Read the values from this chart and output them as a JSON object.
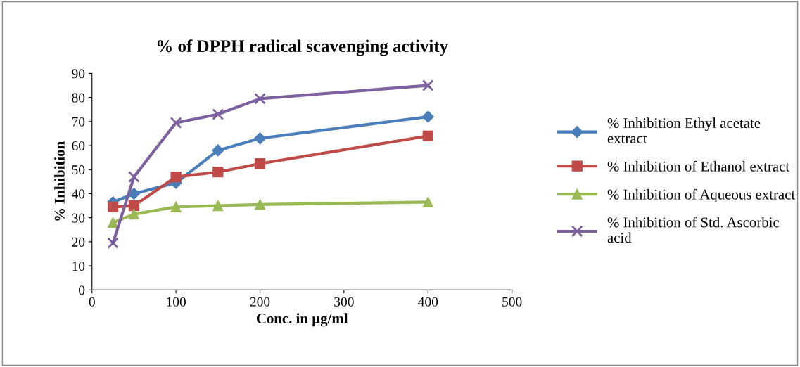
{
  "chart_data": {
    "type": "line",
    "title": "% of DPPH radical scavenging activity",
    "xlabel": "Conc. in µg/ml",
    "ylabel": "% Inhibition",
    "x": [
      25,
      50,
      100,
      150,
      200,
      400
    ],
    "series": [
      {
        "name": "% Inhibition Ethyl acetate extract",
        "color": "#4a7ebb",
        "marker": "diamond",
        "values": [
          36.5,
          40,
          44.5,
          58,
          63,
          72
        ]
      },
      {
        "name": "% Inhibition of Ethanol extract",
        "color": "#be4b48",
        "marker": "square",
        "values": [
          34.5,
          35,
          47,
          49,
          52.5,
          64
        ]
      },
      {
        "name": "% Inhibition of Aqueous extract",
        "color": "#98b954",
        "marker": "triangle",
        "values": [
          28,
          31.5,
          34.5,
          35,
          35.5,
          36.5
        ]
      },
      {
        "name": "% Inhibition of Std. Ascorbic acid",
        "color": "#7d60a0",
        "marker": "cross",
        "values": [
          19.5,
          47,
          69.5,
          73,
          79.5,
          85
        ]
      }
    ],
    "xlim": [
      0,
      500
    ],
    "xticks": [
      0,
      100,
      200,
      300,
      400,
      500
    ],
    "ylim": [
      0,
      90
    ],
    "yticks": [
      0,
      10,
      20,
      30,
      40,
      50,
      60,
      70,
      80,
      90
    ],
    "grid": false,
    "legend": "right",
    "line_style": "solid"
  }
}
